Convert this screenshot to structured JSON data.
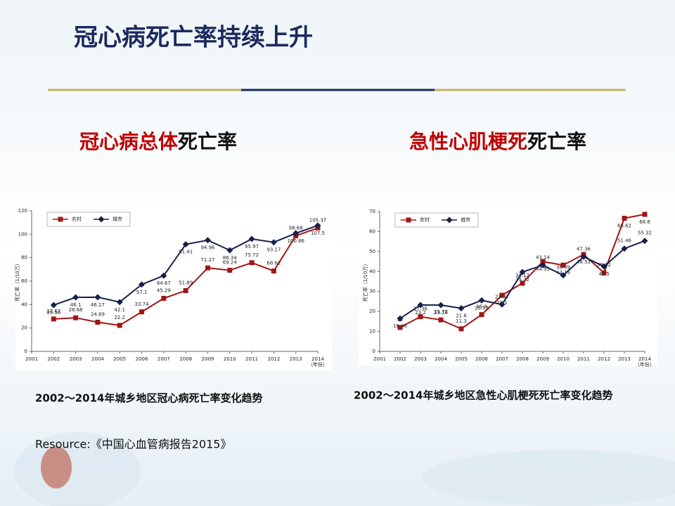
{
  "slide": {
    "title": "冠心病死亡率持续上升",
    "headings": [
      {
        "highlight": "冠心病总体",
        "rest": "死亡率"
      },
      {
        "highlight": "急性心肌梗死",
        "rest": "死亡率"
      }
    ],
    "captions": [
      "2002～2014年城乡地区冠心病死亡率变化趋势",
      "2002～2014年城乡地区急性心肌梗死死亡率变化趋势"
    ],
    "source": "Resource:《中国心血管病报告2015》"
  },
  "chart_data": [
    {
      "type": "line",
      "y_label": "死亡率（1/10万）",
      "x_label": "（年份）",
      "legend": "top-left",
      "x": [
        2002,
        2003,
        2004,
        2005,
        2006,
        2007,
        2008,
        2009,
        2010,
        2011,
        2012,
        2013,
        2014
      ],
      "xlim": [
        2001,
        2014
      ],
      "xticks": [
        2001,
        2002,
        2003,
        2004,
        2005,
        2006,
        2007,
        2008,
        2009,
        2010,
        2011,
        2012,
        2013,
        2014
      ],
      "ylim": [
        0,
        120
      ],
      "yticks": [
        0,
        20,
        40,
        60,
        80,
        100,
        120
      ],
      "series": [
        {
          "name": "农村",
          "color": "#a31515",
          "marker": "square",
          "values": [
            27.67,
            28.68,
            24.89,
            22.2,
            33.74,
            45.29,
            51.89,
            71.27,
            69.24,
            75.72,
            68.62,
            98.68,
            105.37
          ]
        },
        {
          "name": "城市",
          "color": "#16204a",
          "marker": "diamond",
          "values": [
            39.56,
            46.1,
            46.27,
            42.1,
            57.1,
            64.67,
            91.41,
            94.96,
            86.34,
            95.97,
            93.17,
            100.86,
            107.5
          ]
        }
      ]
    },
    {
      "type": "line",
      "y_label": "死亡率（1/10万）",
      "x_label": "（年份）",
      "legend": "top-left",
      "x": [
        2002,
        2003,
        2004,
        2005,
        2006,
        2007,
        2008,
        2009,
        2010,
        2011,
        2012,
        2013,
        2014
      ],
      "xlim": [
        2001,
        2014
      ],
      "xticks": [
        2001,
        2002,
        2003,
        2004,
        2005,
        2006,
        2007,
        2008,
        2009,
        2010,
        2011,
        2012,
        2013,
        2014
      ],
      "ylim": [
        0,
        70
      ],
      "yticks": [
        0,
        10,
        20,
        30,
        40,
        50,
        60,
        70
      ],
      "series": [
        {
          "name": "农村",
          "color": "#a31515",
          "marker": "square",
          "values": [
            12,
            17.36,
            15.77,
            11.3,
            18.4,
            28.1,
            34.12,
            44.95,
            43.19,
            48.53,
            39.32,
            66.62,
            68.6
          ]
        },
        {
          "name": "城市",
          "color": "#16204a",
          "marker": "diamond",
          "values": [
            16.46,
            23.2,
            23.16,
            21.6,
            25.53,
            23.47,
            39.72,
            43.14,
            38.09,
            47.36,
            42.5,
            51.46,
            55.32
          ]
        }
      ]
    }
  ]
}
